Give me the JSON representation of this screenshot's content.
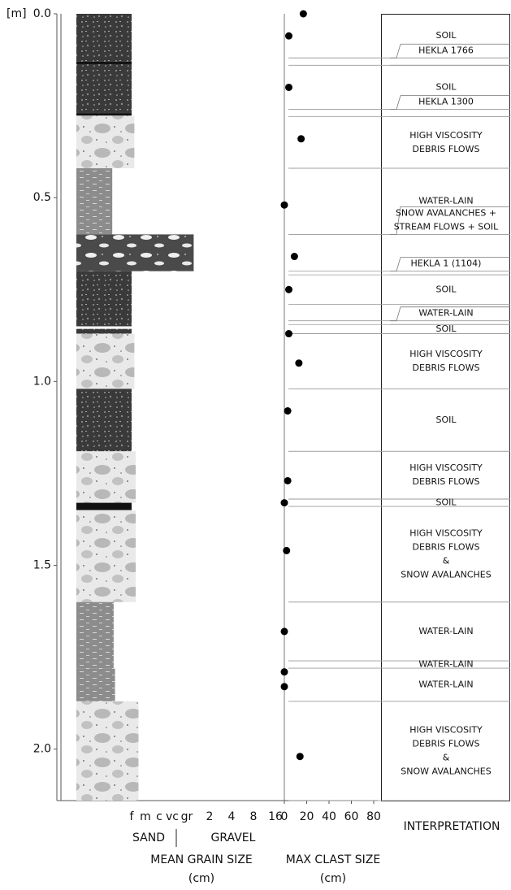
{
  "chart_data": {
    "type": "stratigraphic-log",
    "depth_unit": "[m]",
    "ylim": [
      0,
      2.14
    ],
    "yticks": [
      {
        "value": 0,
        "label": "0.0"
      },
      0.5,
      {
        "value": 1,
        "label": "1.0"
      },
      1.5,
      {
        "value": 2,
        "label": "2.0"
      }
    ],
    "grain_size": {
      "categories": [
        "f",
        "m",
        "c",
        "vc",
        "gr",
        "2",
        "4",
        "8",
        "16"
      ],
      "class_labels": [
        "SAND",
        "GRAVEL"
      ],
      "title": "MEAN GRAIN SIZE",
      "unit": "(cm)",
      "layers": [
        {
          "top": 0,
          "bottom": 0.13,
          "grain": 0,
          "pattern": "soil"
        },
        {
          "top": 0.13,
          "bottom": 0.137,
          "grain": 0,
          "pattern": "tephra"
        },
        {
          "top": 0.137,
          "bottom": 0.27,
          "grain": 0,
          "pattern": "soil"
        },
        {
          "top": 0.27,
          "bottom": 0.277,
          "grain": 0,
          "pattern": "tephra"
        },
        {
          "top": 0.277,
          "bottom": 0.42,
          "grain": 0.2,
          "pattern": "debris"
        },
        {
          "top": 0.42,
          "bottom": 0.6,
          "grain": -1.4,
          "pattern": "water"
        },
        {
          "top": 0.6,
          "bottom": 0.7,
          "grain": 4.3,
          "pattern": "stream"
        },
        {
          "top": 0.7,
          "bottom": 0.85,
          "grain": 0,
          "pattern": "soil"
        },
        {
          "top": 0.85,
          "bottom": 0.857,
          "grain": 0,
          "pattern": "white"
        },
        {
          "top": 0.857,
          "bottom": 0.87,
          "grain": 0,
          "pattern": "soil"
        },
        {
          "top": 0.87,
          "bottom": 1.02,
          "grain": 0.2,
          "pattern": "debris"
        },
        {
          "top": 1.02,
          "bottom": 1.19,
          "grain": 0,
          "pattern": "soil"
        },
        {
          "top": 1.19,
          "bottom": 1.33,
          "grain": 0.3,
          "pattern": "debris"
        },
        {
          "top": 1.33,
          "bottom": 1.35,
          "grain": 0,
          "pattern": "tephra"
        },
        {
          "top": 1.35,
          "bottom": 1.6,
          "grain": 0.3,
          "pattern": "debris"
        },
        {
          "top": 1.6,
          "bottom": 1.78,
          "grain": -1.3,
          "pattern": "water"
        },
        {
          "top": 1.78,
          "bottom": 1.87,
          "grain": -1.2,
          "pattern": "water"
        },
        {
          "top": 1.87,
          "bottom": 2.14,
          "grain": 0.5,
          "pattern": "debris"
        }
      ]
    },
    "max_clast": {
      "title": "MAX CLAST SIZE",
      "unit": "(cm)",
      "xlim": [
        0,
        80
      ],
      "xticks": [
        0,
        20,
        40,
        60,
        80
      ],
      "depth": [
        0,
        0.06,
        0.2,
        0.34,
        0.52,
        0.66,
        0.75,
        0.87,
        0.95,
        1.08,
        1.27,
        1.33,
        1.46,
        1.68,
        1.79,
        1.83,
        2.02
      ],
      "size": [
        17,
        4,
        4,
        15,
        0,
        9,
        4,
        4,
        13,
        3,
        3,
        0,
        2,
        0,
        0,
        0,
        14
      ],
      "color": "#000000"
    },
    "interpretation": {
      "title": "INTERPRETATION",
      "units": [
        {
          "top": 0,
          "bottom": 0.12,
          "label": [
            "SOIL"
          ]
        },
        {
          "top": 0.12,
          "bottom": 0.14,
          "label": [
            "HEKLA 1766"
          ],
          "callout": true
        },
        {
          "top": 0.14,
          "bottom": 0.26,
          "label": [
            "SOIL"
          ]
        },
        {
          "top": 0.26,
          "bottom": 0.28,
          "label": [
            "HEKLA 1300"
          ],
          "callout": true
        },
        {
          "top": 0.28,
          "bottom": 0.42,
          "label": [
            "HIGH VISCOSITY",
            "DEBRIS FLOWS"
          ]
        },
        {
          "top": 0.42,
          "bottom": 0.6,
          "label": [
            "WATER-LAIN"
          ]
        },
        {
          "top": 0.6,
          "bottom": 0.7,
          "label": [
            "SNOW AVALANCHES +",
            "STREAM FLOWS + SOIL"
          ],
          "callout": true
        },
        {
          "top": 0.7,
          "bottom": 0.71,
          "label": [
            "HEKLA 1 (1104)"
          ],
          "callout": true
        },
        {
          "top": 0.71,
          "bottom": 0.79,
          "label": [
            "SOIL"
          ]
        },
        {
          "top": 0.835,
          "bottom": 0.845,
          "label": [
            "WATER-LAIN"
          ],
          "callout": true
        },
        {
          "top": 0.845,
          "bottom": 0.87,
          "label": [
            "SOIL"
          ]
        },
        {
          "top": 0.87,
          "bottom": 1.02,
          "label": [
            "HIGH VISCOSITY",
            "DEBRIS FLOWS"
          ]
        },
        {
          "top": 1.02,
          "bottom": 1.19,
          "label": [
            "SOIL"
          ]
        },
        {
          "top": 1.19,
          "bottom": 1.32,
          "label": [
            "HIGH VISCOSITY",
            "DEBRIS FLOWS"
          ]
        },
        {
          "top": 1.32,
          "bottom": 1.34,
          "label": [
            "SOIL"
          ]
        },
        {
          "top": 1.34,
          "bottom": 1.6,
          "label": [
            "HIGH VISCOSITY",
            "DEBRIS FLOWS",
            "&",
            "SNOW AVALANCHES"
          ]
        },
        {
          "top": 1.6,
          "bottom": 1.76,
          "label": [
            "WATER-LAIN"
          ]
        },
        {
          "top": 1.76,
          "bottom": 1.78,
          "label": [
            "WATER-LAIN"
          ]
        },
        {
          "top": 1.78,
          "bottom": 1.87,
          "label": [
            "WATER-LAIN"
          ]
        },
        {
          "top": 1.87,
          "bottom": 2.14,
          "label": [
            "HIGH VISCOSITY",
            "DEBRIS FLOWS",
            "&",
            "SNOW AVALANCHES"
          ]
        }
      ]
    }
  }
}
